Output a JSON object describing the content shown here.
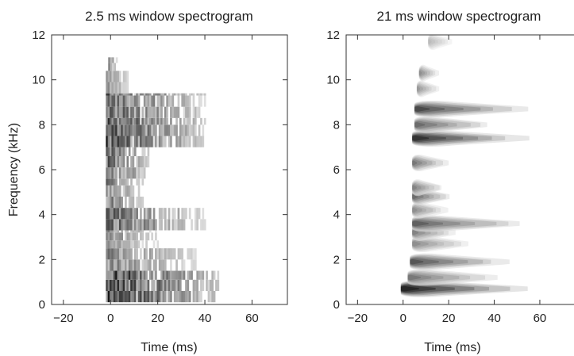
{
  "chart_data": [
    {
      "type": "heatmap",
      "title": "2.5 ms window spectrogram",
      "xlabel": "Time (ms)",
      "ylabel": "Frequency (kHz)",
      "xlim": [
        -25,
        75
      ],
      "ylim": [
        0,
        12
      ],
      "xticks": [
        -20,
        0,
        20,
        40,
        60
      ],
      "yticks": [
        0,
        2,
        4,
        6,
        8,
        10,
        12
      ],
      "xtick_labels": [
        "−20",
        "0",
        "20",
        "40",
        "60"
      ],
      "ytick_labels": [
        "0",
        "2",
        "4",
        "6",
        "8",
        "10",
        "12"
      ],
      "grid": false,
      "bands": [
        {
          "f": [
            0.1,
            1.5
          ],
          "t": [
            -2,
            46
          ],
          "peak": 0.98
        },
        {
          "f": [
            1.5,
            2.5
          ],
          "t": [
            -2,
            36
          ],
          "peak": 0.6
        },
        {
          "f": [
            2.5,
            3.3
          ],
          "t": [
            -2,
            20
          ],
          "peak": 0.55
        },
        {
          "f": [
            3.3,
            4.3
          ],
          "t": [
            -2,
            40
          ],
          "peak": 0.75
        },
        {
          "f": [
            4.3,
            5.6
          ],
          "t": [
            -2,
            14
          ],
          "peak": 0.65
        },
        {
          "f": [
            5.6,
            7.0
          ],
          "t": [
            -2,
            16
          ],
          "peak": 0.8
        },
        {
          "f": [
            7.0,
            8.3
          ],
          "t": [
            -2,
            40
          ],
          "peak": 0.9
        },
        {
          "f": [
            8.3,
            9.4
          ],
          "t": [
            -2,
            40
          ],
          "peak": 0.8
        },
        {
          "f": [
            9.4,
            10.4
          ],
          "t": [
            -2,
            7
          ],
          "peak": 0.55
        },
        {
          "f": [
            10.4,
            11.0
          ],
          "t": [
            -1,
            3
          ],
          "peak": 0.5
        }
      ]
    },
    {
      "type": "heatmap",
      "title": "21 ms window spectrogram",
      "xlabel": "Time (ms)",
      "ylabel": "",
      "xlim": [
        -25,
        75
      ],
      "ylim": [
        0,
        12
      ],
      "xticks": [
        -20,
        0,
        20,
        40,
        60
      ],
      "yticks": [
        0,
        2,
        4,
        6,
        8,
        10,
        12
      ],
      "xtick_labels": [
        "−20",
        "0",
        "20",
        "40",
        "60"
      ],
      "ytick_labels": [
        "0",
        "2",
        "4",
        "6",
        "8",
        "10",
        "12"
      ],
      "grid": false,
      "blobs": [
        {
          "f": 0.7,
          "t": [
            -1,
            56
          ],
          "peak": 0.95
        },
        {
          "f": 1.2,
          "t": [
            2,
            42
          ],
          "peak": 0.55
        },
        {
          "f": 1.9,
          "t": [
            3,
            48
          ],
          "peak": 0.7
        },
        {
          "f": 2.7,
          "t": [
            4,
            30
          ],
          "peak": 0.45
        },
        {
          "f": 3.2,
          "t": [
            4,
            24
          ],
          "peak": 0.5
        },
        {
          "f": 3.6,
          "t": [
            4,
            56
          ],
          "peak": 0.65
        },
        {
          "f": 4.2,
          "t": [
            4,
            20
          ],
          "peak": 0.45
        },
        {
          "f": 4.8,
          "t": [
            4,
            22
          ],
          "peak": 0.6
        },
        {
          "f": 5.2,
          "t": [
            4,
            18
          ],
          "peak": 0.5
        },
        {
          "f": 6.3,
          "t": [
            4,
            20
          ],
          "peak": 0.55
        },
        {
          "f": 7.4,
          "t": [
            4,
            56
          ],
          "peak": 0.85
        },
        {
          "f": 8.0,
          "t": [
            5,
            40
          ],
          "peak": 0.6
        },
        {
          "f": 8.7,
          "t": [
            5,
            56
          ],
          "peak": 0.75
        },
        {
          "f": 9.6,
          "t": [
            6,
            16
          ],
          "peak": 0.4
        },
        {
          "f": 10.3,
          "t": [
            7,
            16
          ],
          "peak": 0.45
        },
        {
          "f": 11.7,
          "t": [
            11,
            22
          ],
          "peak": 0.25
        }
      ]
    }
  ]
}
